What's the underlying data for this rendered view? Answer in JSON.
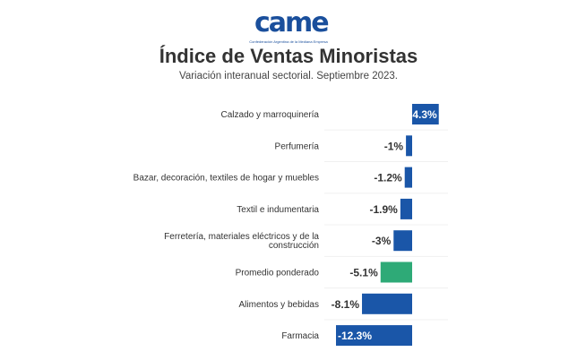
{
  "logo": {
    "text": "came",
    "tagline": "Confederación Argentina de la Mediana Empresa"
  },
  "chart_data": {
    "type": "bar",
    "orientation": "horizontal",
    "title": "Índice de Ventas Minoristas",
    "subtitle": "Variación interanual sectorial. Septiembre 2023.",
    "categories": [
      "Calzado y marroquinería",
      "Perfumería",
      "Bazar, decoración, textiles de hogar y muebles",
      "Textil e indumentaria",
      "Ferretería, materiales eléctricos y de la construcción",
      "Promedio ponderado",
      "Alimentos y bebidas",
      "Farmacia"
    ],
    "values": [
      4.3,
      -1,
      -1.2,
      -1.9,
      -3,
      -5.1,
      -8.1,
      -12.3
    ],
    "labels": [
      "4.3%",
      "-1%",
      "-1.2%",
      "-1.9%",
      "-3%",
      "-5.1%",
      "-8.1%",
      "-12.3%"
    ],
    "colors": {
      "default": "#1a56a8",
      "highlight": "#2eaa77",
      "highlight_category": "Promedio ponderado"
    },
    "xlim": [
      -12.3,
      4.3
    ],
    "grid": false,
    "legend": "none"
  }
}
